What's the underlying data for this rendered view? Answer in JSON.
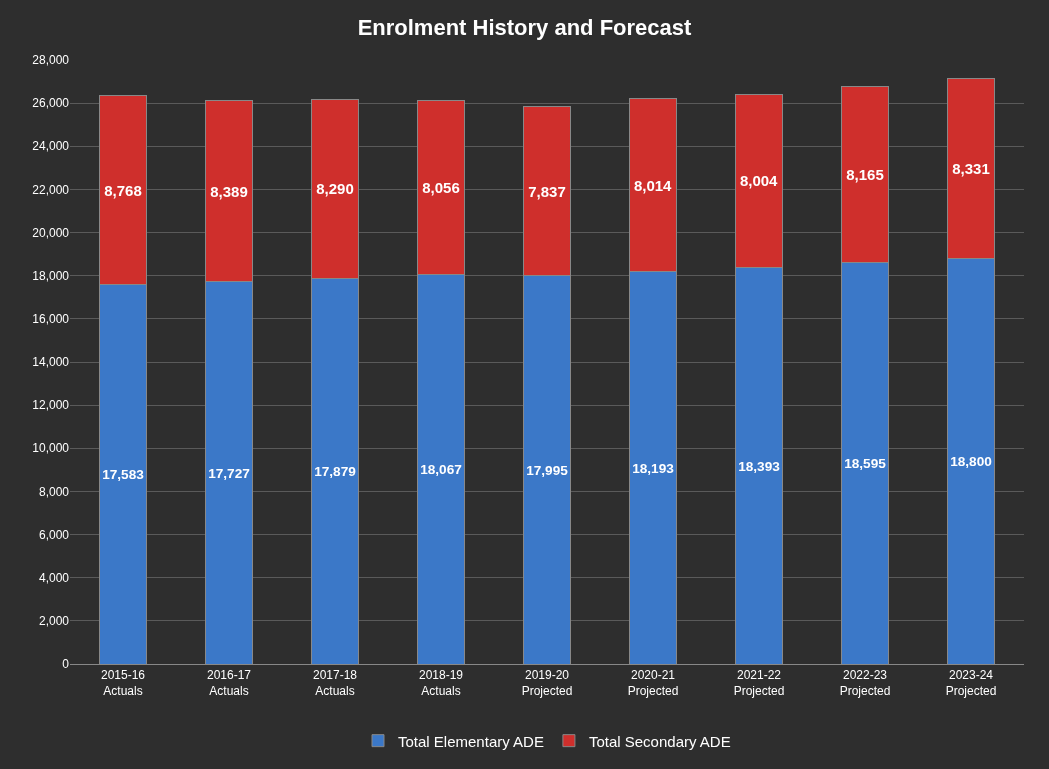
{
  "chart_data": {
    "type": "bar",
    "title": "Enrolment History and Forecast",
    "stacked": true,
    "grid": "y",
    "legend": "bottom",
    "categories": [
      "2015-16\nActuals",
      "2016-17\nActuals",
      "2017-18\nActuals",
      "2018-19\nActuals",
      "2019-20\nProjected",
      "2020-21\nProjected",
      "2021-22\nProjected",
      "2022-23\nProjected",
      "2023-24\nProjected"
    ],
    "series": [
      {
        "name": "Total Elementary ADE",
        "color": "#3b78c8",
        "values": [
          17583,
          17727,
          17879,
          18067,
          17995,
          18193,
          18393,
          18595,
          18800
        ],
        "value_labels": [
          "17,583",
          "17,727",
          "17,879",
          "18,067",
          "17,995",
          "18,193",
          "18,393",
          "18,595",
          "18,800"
        ]
      },
      {
        "name": "Total Secondary ADE",
        "color": "#cf2f2c",
        "values": [
          8768,
          8389,
          8290,
          8056,
          7837,
          8014,
          8004,
          8165,
          8331
        ],
        "value_labels": [
          "8,768",
          "8,389",
          "8,290",
          "8,056",
          "7,837",
          "8,014",
          "8,004",
          "8,165",
          "8,331"
        ]
      }
    ],
    "ylim": [
      0,
      28000
    ],
    "yticks": [
      0,
      {
        "value": 2000,
        "label": "2,000"
      },
      {
        "value": 4000,
        "label": "4,000"
      },
      {
        "value": 6000,
        "label": "6,000"
      },
      {
        "value": 8000,
        "label": "8,000"
      },
      {
        "value": 10000,
        "label": "10,000"
      },
      {
        "value": 12000,
        "label": "12,000"
      },
      {
        "value": 14000,
        "label": "14,000"
      },
      {
        "value": 16000,
        "label": "16,000"
      },
      {
        "value": 18000,
        "label": "18,000"
      },
      {
        "value": 20000,
        "label": "20,000"
      },
      {
        "value": 22000,
        "label": "22,000"
      },
      {
        "value": 24000,
        "label": "24,000"
      },
      {
        "value": 26000,
        "label": "26,000"
      },
      {
        "value": 28000,
        "label": "28,000"
      }
    ]
  }
}
